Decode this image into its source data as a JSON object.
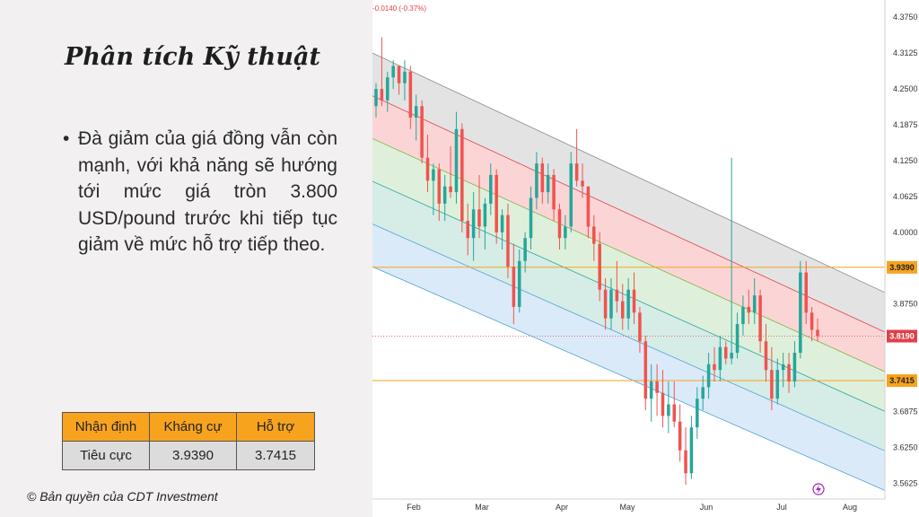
{
  "slide": {
    "title": "Phân tích Kỹ thuật",
    "bullet": "Đà giảm của giá đồng vẫn còn mạnh, với khả năng sẽ hướng tới mức giá tròn 3.800 USD/pound trước khi tiếp tục giảm về mức hỗ trợ tiếp theo.",
    "copyright": "© Bản quyền của CDT Investment"
  },
  "summary_table": {
    "headers": [
      "Nhận định",
      "Kháng cự",
      "Hỗ trợ"
    ],
    "row": [
      "Tiêu cực",
      "3.9390",
      "3.7415"
    ]
  },
  "chart_data": {
    "type": "candlestick",
    "header_text": "-0.0140 (-0.37%)",
    "x_tick_labels": [
      "Feb",
      "Mar",
      "Apr",
      "May",
      "Jun",
      "Jul",
      "Aug"
    ],
    "y_tick_labels": [
      "4.3750",
      "4.3125",
      "4.2500",
      "4.1875",
      "4.1250",
      "4.0625",
      "4.0000",
      "3.8750",
      "3.6875",
      "3.6250",
      "3.5625"
    ],
    "ylim": [
      3.535,
      4.405
    ],
    "resistance": {
      "value": 3.939,
      "label": "3.9390",
      "color": "#f7a31e"
    },
    "support": {
      "value": 3.7415,
      "label": "3.7415",
      "color": "#f7a31e"
    },
    "current_price": {
      "value": 3.819,
      "label": "3.8190",
      "color": "#e0414b"
    },
    "colors": {
      "up": "#26a69a",
      "down": "#ef5350"
    },
    "channel": {
      "upper_start": 4.3125,
      "upper_end": 3.895,
      "lower_start": 3.94,
      "lower_end": 3.55,
      "bands": [
        {
          "fill": "#d9d9d9"
        },
        {
          "fill": "#f9c7c7"
        },
        {
          "fill": "#d3ebcf"
        },
        {
          "fill": "#c8e6dd"
        },
        {
          "fill": "#cfe3f6"
        }
      ]
    },
    "candles": [
      [
        4.22,
        4.26,
        4.2,
        4.25
      ],
      [
        4.25,
        4.34,
        4.22,
        4.23
      ],
      [
        4.23,
        4.28,
        4.21,
        4.27
      ],
      [
        4.27,
        4.3,
        4.25,
        4.29
      ],
      [
        4.29,
        4.29,
        4.24,
        4.26
      ],
      [
        4.26,
        4.3,
        4.23,
        4.28
      ],
      [
        4.28,
        4.29,
        4.18,
        4.2
      ],
      [
        4.2,
        4.24,
        4.16,
        4.22
      ],
      [
        4.22,
        4.23,
        4.12,
        4.13
      ],
      [
        4.13,
        4.17,
        4.07,
        4.09
      ],
      [
        4.09,
        4.12,
        4.03,
        4.11
      ],
      [
        4.11,
        4.12,
        4.02,
        4.05
      ],
      [
        4.05,
        4.1,
        4.02,
        4.08
      ],
      [
        4.08,
        4.15,
        4.06,
        4.07
      ],
      [
        4.07,
        4.21,
        4.05,
        4.18
      ],
      [
        4.18,
        4.19,
        4.0,
        4.02
      ],
      [
        4.02,
        4.05,
        3.96,
        3.99
      ],
      [
        3.99,
        4.07,
        3.95,
        4.04
      ],
      [
        4.04,
        4.1,
        3.99,
        4.01
      ],
      [
        4.01,
        4.06,
        3.97,
        4.05
      ],
      [
        4.05,
        4.12,
        4.03,
        4.1
      ],
      [
        4.1,
        4.11,
        3.98,
        4.0
      ],
      [
        4.0,
        4.04,
        3.97,
        4.03
      ],
      [
        4.03,
        4.05,
        3.92,
        3.94
      ],
      [
        3.94,
        3.98,
        3.84,
        3.87
      ],
      [
        3.87,
        3.97,
        3.86,
        3.95
      ],
      [
        3.95,
        4.0,
        3.93,
        3.99
      ],
      [
        3.99,
        4.08,
        3.97,
        4.06
      ],
      [
        4.06,
        4.14,
        4.04,
        4.12
      ],
      [
        4.12,
        4.13,
        4.05,
        4.07
      ],
      [
        4.07,
        4.12,
        4.05,
        4.1
      ],
      [
        4.1,
        4.11,
        4.02,
        4.04
      ],
      [
        4.04,
        4.05,
        3.97,
        3.99
      ],
      [
        3.99,
        4.03,
        3.97,
        4.01
      ],
      [
        4.01,
        4.14,
        4.0,
        4.12
      ],
      [
        4.12,
        4.18,
        4.08,
        4.09
      ],
      [
        4.09,
        4.12,
        4.06,
        4.08
      ],
      [
        4.08,
        4.08,
        3.99,
        4.01
      ],
      [
        4.01,
        4.03,
        3.95,
        3.98
      ],
      [
        3.98,
        4.0,
        3.88,
        3.9
      ],
      [
        3.9,
        3.92,
        3.83,
        3.85
      ],
      [
        3.85,
        3.92,
        3.83,
        3.9
      ],
      [
        3.9,
        3.95,
        3.86,
        3.88
      ],
      [
        3.88,
        3.91,
        3.83,
        3.85
      ],
      [
        3.85,
        3.92,
        3.83,
        3.9
      ],
      [
        3.9,
        3.93,
        3.84,
        3.86
      ],
      [
        3.86,
        3.87,
        3.79,
        3.81
      ],
      [
        3.81,
        3.82,
        3.69,
        3.71
      ],
      [
        3.71,
        3.77,
        3.67,
        3.74
      ],
      [
        3.74,
        3.77,
        3.68,
        3.72
      ],
      [
        3.72,
        3.76,
        3.66,
        3.68
      ],
      [
        3.68,
        3.74,
        3.65,
        3.7
      ],
      [
        3.7,
        3.74,
        3.66,
        3.67
      ],
      [
        3.67,
        3.7,
        3.6,
        3.62
      ],
      [
        3.62,
        3.66,
        3.56,
        3.58
      ],
      [
        3.58,
        3.68,
        3.57,
        3.66
      ],
      [
        3.66,
        3.73,
        3.64,
        3.71
      ],
      [
        3.71,
        3.75,
        3.69,
        3.73
      ],
      [
        3.73,
        3.79,
        3.71,
        3.77
      ],
      [
        3.77,
        3.8,
        3.74,
        3.76
      ],
      [
        3.76,
        3.82,
        3.74,
        3.8
      ],
      [
        3.8,
        3.81,
        3.77,
        3.78
      ],
      [
        3.78,
        4.13,
        3.77,
        3.79
      ],
      [
        3.79,
        3.86,
        3.78,
        3.84
      ],
      [
        3.84,
        3.89,
        3.82,
        3.87
      ],
      [
        3.87,
        3.9,
        3.84,
        3.86
      ],
      [
        3.86,
        3.92,
        3.84,
        3.89
      ],
      [
        3.89,
        3.9,
        3.79,
        3.81
      ],
      [
        3.81,
        3.84,
        3.74,
        3.76
      ],
      [
        3.76,
        3.8,
        3.69,
        3.71
      ],
      [
        3.71,
        3.78,
        3.7,
        3.76
      ],
      [
        3.76,
        3.79,
        3.73,
        3.77
      ],
      [
        3.77,
        3.79,
        3.72,
        3.74
      ],
      [
        3.74,
        3.81,
        3.73,
        3.79
      ],
      [
        3.79,
        3.95,
        3.78,
        3.93
      ],
      [
        3.93,
        3.95,
        3.84,
        3.86
      ],
      [
        3.86,
        3.87,
        3.81,
        3.83
      ],
      [
        3.83,
        3.85,
        3.81,
        3.819
      ]
    ]
  }
}
